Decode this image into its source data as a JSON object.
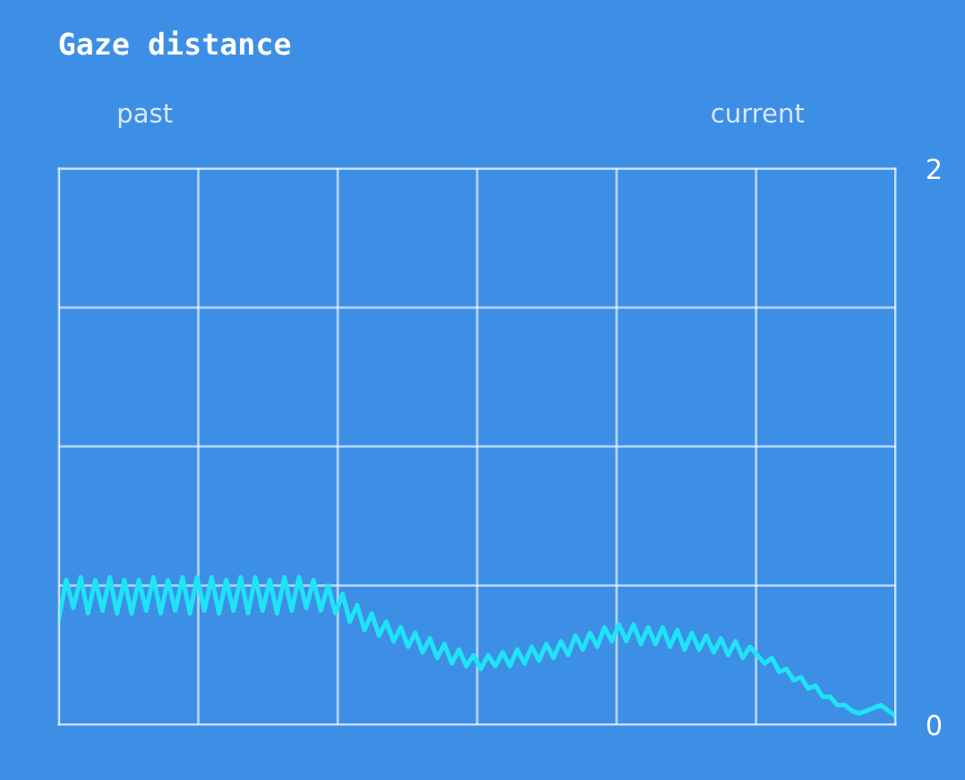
{
  "chart_data": {
    "type": "line",
    "title": "Gaze distance",
    "annotations": [
      "past",
      "current"
    ],
    "categories": [
      null,
      null,
      null,
      null,
      null,
      null,
      null,
      null,
      null,
      null,
      null,
      null,
      null,
      null,
      null,
      null,
      null,
      null,
      null,
      null,
      null,
      null,
      null,
      null,
      null,
      null,
      null,
      null,
      null,
      null,
      null,
      null,
      null,
      null,
      null,
      null,
      null,
      null,
      null,
      null,
      null,
      null,
      null,
      null,
      null,
      null,
      null,
      null,
      null,
      null,
      null,
      null,
      null,
      null,
      null,
      null,
      null,
      null,
      null,
      null,
      null,
      null,
      null,
      null,
      null,
      null,
      null,
      null,
      null,
      null,
      null,
      null,
      null,
      null,
      null,
      null,
      null,
      null,
      null,
      null,
      null,
      null,
      null,
      null,
      null,
      null,
      null,
      null,
      null,
      null,
      null,
      null,
      null,
      null,
      null,
      null,
      null,
      null,
      null,
      null,
      null,
      null,
      null,
      null,
      null,
      null,
      null,
      null,
      null,
      null,
      null,
      null,
      null,
      null,
      null,
      null
    ],
    "series": [
      {
        "color": "#1fe3f7",
        "values": [
          0.38,
          0.52,
          0.42,
          0.53,
          0.4,
          0.52,
          0.41,
          0.53,
          0.4,
          0.52,
          0.4,
          0.52,
          0.41,
          0.53,
          0.4,
          0.52,
          0.41,
          0.53,
          0.4,
          0.53,
          0.41,
          0.53,
          0.4,
          0.52,
          0.41,
          0.53,
          0.4,
          0.53,
          0.41,
          0.52,
          0.4,
          0.53,
          0.41,
          0.53,
          0.42,
          0.52,
          0.41,
          0.5,
          0.4,
          0.47,
          0.37,
          0.43,
          0.34,
          0.4,
          0.32,
          0.37,
          0.3,
          0.35,
          0.28,
          0.33,
          0.26,
          0.31,
          0.24,
          0.29,
          0.22,
          0.27,
          0.21,
          0.25,
          0.2,
          0.25,
          0.21,
          0.26,
          0.21,
          0.27,
          0.22,
          0.28,
          0.23,
          0.29,
          0.24,
          0.3,
          0.25,
          0.32,
          0.27,
          0.33,
          0.28,
          0.35,
          0.3,
          0.36,
          0.3,
          0.36,
          0.29,
          0.35,
          0.29,
          0.35,
          0.28,
          0.34,
          0.27,
          0.33,
          0.27,
          0.32,
          0.26,
          0.31,
          0.25,
          0.3,
          0.24,
          0.28,
          0.25,
          0.22,
          0.24,
          0.19,
          0.2,
          0.16,
          0.17,
          0.13,
          0.14,
          0.1,
          0.1,
          0.07,
          0.07,
          0.05,
          0.04,
          0.05,
          0.06,
          0.07,
          0.05,
          0.03
        ]
      }
    ],
    "ylim": [
      0,
      2
    ],
    "yticks": [
      0,
      {
        "value": 0.5,
        "label": null
      },
      {
        "value": 1,
        "label": null
      },
      {
        "value": 1.5,
        "label": null
      },
      2
    ],
    "grid": true,
    "legend": false,
    "marker": "none",
    "line_style": "solid"
  }
}
